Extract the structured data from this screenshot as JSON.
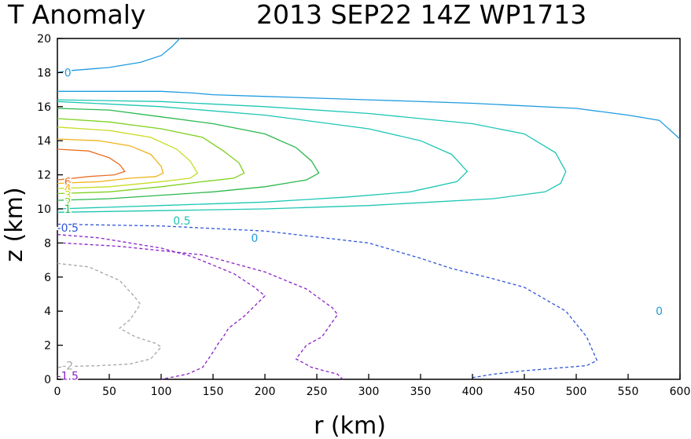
{
  "title_left": "T Anomaly",
  "title_right": "2013 SEP22 14Z   WP1713",
  "chart_data": {
    "type": "contour",
    "xlabel": "r (km)",
    "ylabel": "z (km)",
    "xlim": [
      0,
      600
    ],
    "ylim": [
      0,
      20
    ],
    "xticks": [
      0,
      50,
      100,
      150,
      200,
      250,
      300,
      350,
      400,
      450,
      500,
      550,
      600
    ],
    "yticks": [
      0,
      2,
      4,
      6,
      8,
      10,
      12,
      14,
      16,
      18,
      20
    ],
    "series": [
      {
        "name": "0 upper",
        "level": 0,
        "color": "#1e9be0",
        "dashed": false,
        "points": [
          [
            0,
            18
          ],
          [
            10,
            18.1
          ],
          [
            50,
            18.3
          ],
          [
            80,
            18.6
          ],
          [
            100,
            19
          ],
          [
            110,
            19.5
          ],
          [
            118,
            20
          ]
        ]
      },
      {
        "name": "0",
        "level": 0,
        "color": "#1e9be0",
        "dashed": false,
        "points": [
          [
            0,
            16.9
          ],
          [
            100,
            16.9
          ],
          [
            130,
            16.8
          ],
          [
            150,
            16.7
          ],
          [
            200,
            16.6
          ],
          [
            300,
            16.4
          ],
          [
            400,
            16.2
          ],
          [
            500,
            15.9
          ],
          [
            550,
            15.5
          ],
          [
            580,
            15.2
          ],
          [
            600,
            14.1
          ]
        ]
      },
      {
        "name": "0.5 outer",
        "level": 0.5,
        "color": "#1dc6b4",
        "dashed": false,
        "points": [
          [
            0,
            16.4
          ],
          [
            100,
            16.3
          ],
          [
            200,
            16
          ],
          [
            300,
            15.6
          ],
          [
            400,
            15
          ],
          [
            450,
            14.4
          ],
          [
            480,
            13.3
          ],
          [
            490,
            12.2
          ],
          [
            485,
            11.5
          ],
          [
            470,
            11
          ],
          [
            420,
            10.6
          ],
          [
            300,
            10.2
          ],
          [
            200,
            10
          ],
          [
            100,
            9.9
          ],
          [
            0,
            9.8
          ]
        ]
      },
      {
        "name": "0.5 inner",
        "level": 0.5,
        "color": "#1dc6b4",
        "dashed": false,
        "points": [
          [
            0,
            16.3
          ],
          [
            100,
            16
          ],
          [
            200,
            15.5
          ],
          [
            300,
            14.7
          ],
          [
            350,
            14
          ],
          [
            380,
            13.2
          ],
          [
            395,
            12.2
          ],
          [
            385,
            11.6
          ],
          [
            340,
            11
          ],
          [
            280,
            10.7
          ],
          [
            200,
            10.4
          ],
          [
            100,
            10.2
          ],
          [
            0,
            10
          ]
        ]
      },
      {
        "name": "1",
        "level": 1,
        "color": "#2ab84d",
        "dashed": false,
        "points": [
          [
            0,
            15.9
          ],
          [
            50,
            15.8
          ],
          [
            100,
            15.4
          ],
          [
            150,
            15
          ],
          [
            200,
            14.4
          ],
          [
            230,
            13.6
          ],
          [
            245,
            12.8
          ],
          [
            252,
            12.1
          ],
          [
            240,
            11.7
          ],
          [
            200,
            11.3
          ],
          [
            150,
            11
          ],
          [
            100,
            10.8
          ],
          [
            50,
            10.6
          ],
          [
            0,
            10.5
          ]
        ]
      },
      {
        "name": "2",
        "level": 2,
        "color": "#7ed11f",
        "dashed": false,
        "points": [
          [
            0,
            15.3
          ],
          [
            50,
            15.1
          ],
          [
            100,
            14.7
          ],
          [
            140,
            14.2
          ],
          [
            160,
            13.4
          ],
          [
            175,
            12.7
          ],
          [
            180,
            12.1
          ],
          [
            170,
            11.8
          ],
          [
            140,
            11.6
          ],
          [
            100,
            11.3
          ],
          [
            50,
            11
          ],
          [
            0,
            10.9
          ]
        ]
      },
      {
        "name": "3",
        "level": 3,
        "color": "#c8dc26",
        "dashed": false,
        "points": [
          [
            0,
            14.8
          ],
          [
            50,
            14.6
          ],
          [
            90,
            14.2
          ],
          [
            115,
            13.5
          ],
          [
            128,
            12.8
          ],
          [
            135,
            12.1
          ],
          [
            128,
            11.8
          ],
          [
            100,
            11.6
          ],
          [
            50,
            11.3
          ],
          [
            0,
            11.2
          ]
        ]
      },
      {
        "name": "4",
        "level": 4,
        "color": "#f0b31e",
        "dashed": false,
        "points": [
          [
            0,
            14.1
          ],
          [
            40,
            14
          ],
          [
            70,
            13.7
          ],
          [
            90,
            13.2
          ],
          [
            100,
            12.5
          ],
          [
            102,
            12.1
          ],
          [
            95,
            11.9
          ],
          [
            70,
            11.8
          ],
          [
            40,
            11.6
          ],
          [
            0,
            11.5
          ]
        ]
      },
      {
        "name": "6",
        "level": 6,
        "color": "#e86f24",
        "dashed": false,
        "points": [
          [
            0,
            13.5
          ],
          [
            30,
            13.4
          ],
          [
            50,
            13
          ],
          [
            60,
            12.6
          ],
          [
            65,
            12.2
          ],
          [
            55,
            12
          ],
          [
            30,
            11.9
          ],
          [
            0,
            11.7
          ]
        ]
      },
      {
        "name": "-0.5",
        "level": -0.5,
        "color": "#2f55d8",
        "dashed": true,
        "points": [
          [
            0,
            9.1
          ],
          [
            100,
            9
          ],
          [
            200,
            8.7
          ],
          [
            300,
            8
          ],
          [
            350,
            7.1
          ],
          [
            380,
            6.5
          ],
          [
            420,
            5.9
          ],
          [
            450,
            5.4
          ],
          [
            490,
            4
          ],
          [
            510,
            2.5
          ],
          [
            520,
            1.1
          ],
          [
            510,
            0.8
          ],
          [
            450,
            0.5
          ],
          [
            420,
            0.3
          ],
          [
            400,
            0.1
          ],
          [
            398,
            0
          ]
        ]
      },
      {
        "name": "-1",
        "level": -1,
        "color": "#8a22c8",
        "dashed": true,
        "points": [
          [
            0,
            8.5
          ],
          [
            40,
            8.3
          ],
          [
            100,
            7.7
          ],
          [
            130,
            7.2
          ],
          [
            150,
            6.7
          ],
          [
            170,
            6.2
          ],
          [
            190,
            5.4
          ],
          [
            200,
            4.9
          ],
          [
            180,
            3.7
          ],
          [
            165,
            3
          ],
          [
            160,
            2.5
          ],
          [
            155,
            2.1
          ],
          [
            150,
            1.6
          ],
          [
            140,
            0.7
          ],
          [
            125,
            0.3
          ],
          [
            100,
            0
          ]
        ]
      },
      {
        "name": "-1.5",
        "level": -1.5,
        "color": "#8a22c8",
        "dashed": true,
        "points": [
          [
            5,
            8
          ],
          [
            60,
            7.8
          ],
          [
            140,
            7.3
          ],
          [
            200,
            6.3
          ],
          [
            240,
            5.3
          ],
          [
            265,
            4.2
          ],
          [
            270,
            3.8
          ],
          [
            255,
            2.5
          ],
          [
            240,
            2
          ],
          [
            230,
            1.2
          ],
          [
            245,
            0.7
          ],
          [
            270,
            0.3
          ],
          [
            275,
            0
          ]
        ]
      },
      {
        "name": "-2",
        "level": -2,
        "color": "#a6a6a6",
        "dashed": true,
        "points": [
          [
            0,
            6.8
          ],
          [
            30,
            6.6
          ],
          [
            60,
            5.8
          ],
          [
            75,
            4.8
          ],
          [
            80,
            4.4
          ],
          [
            70,
            3.5
          ],
          [
            60,
            3
          ],
          [
            75,
            2.5
          ],
          [
            95,
            2.1
          ],
          [
            100,
            1.9
          ],
          [
            90,
            1.2
          ],
          [
            70,
            0.9
          ],
          [
            40,
            0.8
          ],
          [
            10,
            0.75
          ],
          [
            0,
            0.7
          ]
        ]
      }
    ],
    "contour_labels": [
      {
        "text": "0",
        "x": 10,
        "y": 18,
        "color": "#1e9be0"
      },
      {
        "text": "0.5",
        "x": 120,
        "y": 9.3,
        "color": "#1dc6b4"
      },
      {
        "text": "0",
        "x": 190,
        "y": 8.3,
        "color": "#1e9be0"
      },
      {
        "text": "0",
        "x": 580,
        "y": 4,
        "color": "#1e9be0"
      },
      {
        "text": "6",
        "x": 10,
        "y": 11.6,
        "color": "#e86f24"
      },
      {
        "text": "4",
        "x": 10,
        "y": 11.2,
        "color": "#f0b31e"
      },
      {
        "text": "3",
        "x": 10,
        "y": 10.8,
        "color": "#c8dc26"
      },
      {
        "text": "2",
        "x": 10,
        "y": 10.4,
        "color": "#7ed11f"
      },
      {
        "text": "1",
        "x": 10,
        "y": 10.0,
        "color": "#2ab84d"
      },
      {
        "text": "-0.5",
        "x": 10,
        "y": 8.9,
        "color": "#2f55d8"
      },
      {
        "text": "-2",
        "x": 10,
        "y": 0.8,
        "color": "#a6a6a6"
      },
      {
        "text": "-1.5",
        "x": 10,
        "y": 0.2,
        "color": "#8a22c8"
      }
    ]
  }
}
